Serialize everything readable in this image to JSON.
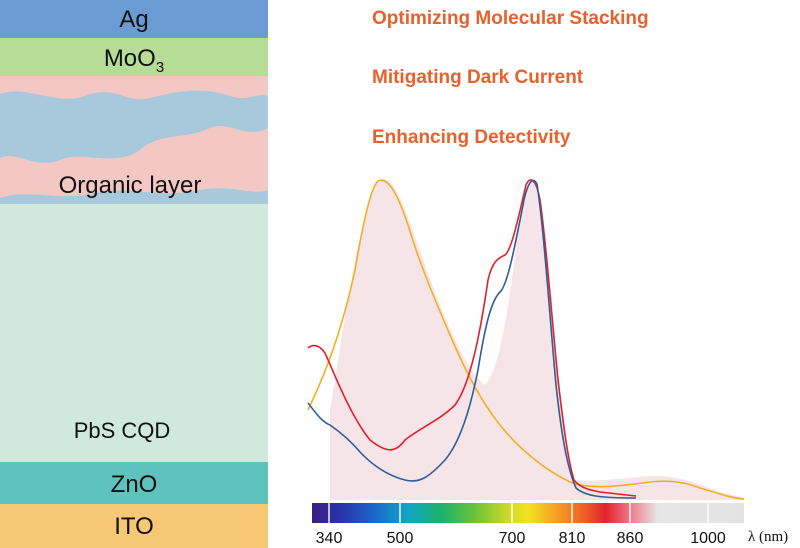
{
  "device_stack": {
    "layers": [
      {
        "name": "Ag",
        "color": "#6a9bd3"
      },
      {
        "name": "MoO",
        "subscript": "3",
        "color": "#b6dc96"
      },
      {
        "name": "Organic layer",
        "color": "#f3c8c4",
        "accent_color": "#a8c9dc"
      },
      {
        "name": "PbS CQD",
        "color": "#cfeadd"
      },
      {
        "name": "ZnO",
        "color": "#5fc3bd"
      },
      {
        "name": "ITO",
        "color": "#f6c875"
      }
    ]
  },
  "headlines": [
    "Optimizing Molecular Stacking",
    "Mitigating Dark Current",
    "Enhancing Detectivity"
  ],
  "headline_color": "#e8612c",
  "spectrum": {
    "axis_ticks": [
      "340",
      "500",
      "700",
      "810",
      "860",
      "1000"
    ],
    "axis_unit": "λ (nm)",
    "curve_colors": {
      "yellow": "#f2b01e",
      "red": "#e3202a",
      "blue": "#2f5d9a"
    },
    "fill_color": "#f4e2e6"
  }
}
